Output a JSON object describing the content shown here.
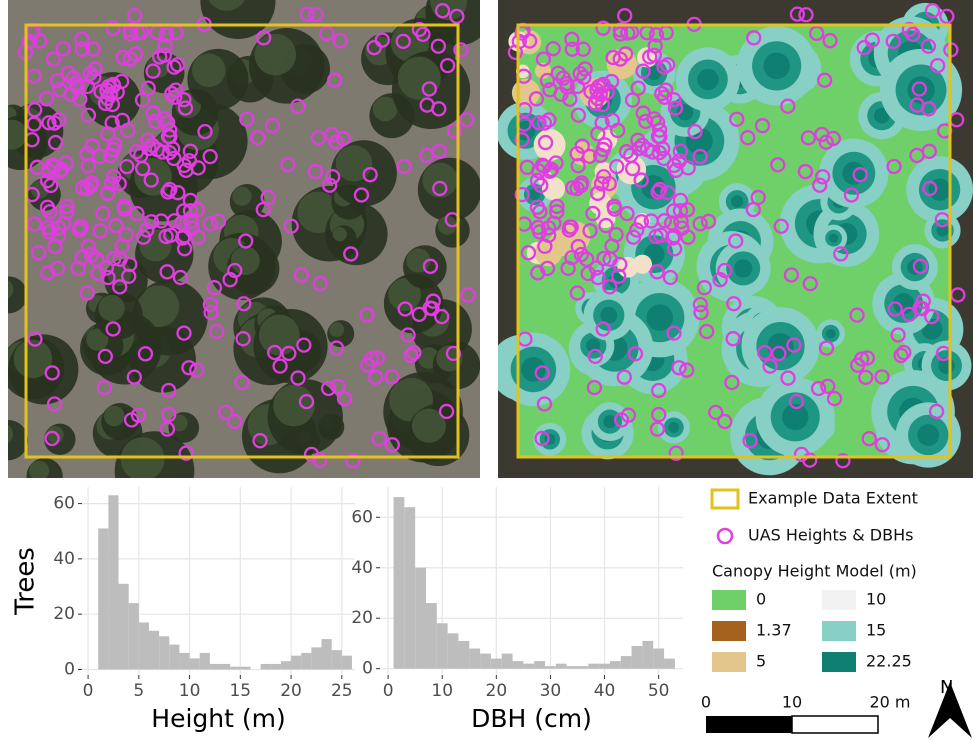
{
  "chart_data": [
    {
      "type": "histogram",
      "x_label": "Height (m)",
      "y_label": "Trees",
      "color": "#bdbdbd",
      "bins": [
        1,
        2,
        3,
        4,
        5,
        6,
        7,
        8,
        9,
        10,
        11,
        12,
        13,
        14,
        15,
        16,
        17,
        18,
        19,
        20,
        21,
        22,
        23,
        24,
        25,
        26
      ],
      "counts": [
        51,
        63,
        31,
        24,
        17,
        14,
        12,
        9,
        6,
        4,
        6,
        2,
        2,
        1,
        1,
        0,
        2,
        2,
        3,
        5,
        6,
        8,
        11,
        7,
        5
      ],
      "xlim": [
        -0.6,
        26.3
      ],
      "xticks": [
        0,
        5,
        10,
        15,
        20,
        25
      ],
      "ylim": [
        -2,
        66
      ],
      "yticks": [
        0,
        20,
        40,
        60
      ],
      "grid": true
    },
    {
      "type": "histogram",
      "x_label": "DBH (cm)",
      "color": "#bdbdbd",
      "bins": [
        1,
        3,
        5,
        7,
        9,
        11,
        13,
        15,
        17,
        19,
        21,
        23,
        25,
        27,
        29,
        31,
        33,
        35,
        37,
        39,
        41,
        43,
        45,
        47,
        49,
        51,
        53
      ],
      "counts": [
        68,
        64,
        40,
        26,
        18,
        14,
        11,
        8,
        6,
        4,
        6,
        3,
        2,
        3,
        1,
        2,
        1,
        1,
        2,
        2,
        3,
        5,
        9,
        11,
        8,
        4
      ],
      "xlim": [
        -1.5,
        54.5
      ],
      "xticks": [
        0,
        10,
        20,
        30,
        40,
        50
      ],
      "ylim": [
        -2.5,
        72
      ],
      "yticks": [
        0,
        20,
        40,
        60
      ],
      "grid": true
    }
  ],
  "legend": {
    "extent": {
      "label": "Example Data Extent",
      "color": "#e2c21c"
    },
    "points": {
      "label": "UAS Heights & DBHs",
      "color": "#e03ee0"
    },
    "chm_title": "Canopy Height Model (m)",
    "chm": [
      {
        "label": 0,
        "color": "#6fd06a"
      },
      {
        "label": 1.37,
        "color": "#a5621e"
      },
      {
        "label": 5,
        "color": "#e3c68b"
      },
      {
        "label": 10,
        "color": "#f2f2f2"
      },
      {
        "label": 15,
        "color": "#88cfc5"
      },
      {
        "label": 22.25,
        "color": "#0e7f70"
      }
    ]
  },
  "scale_bar": {
    "labels": [
      "0",
      "10",
      "20 m"
    ]
  },
  "north": "N"
}
